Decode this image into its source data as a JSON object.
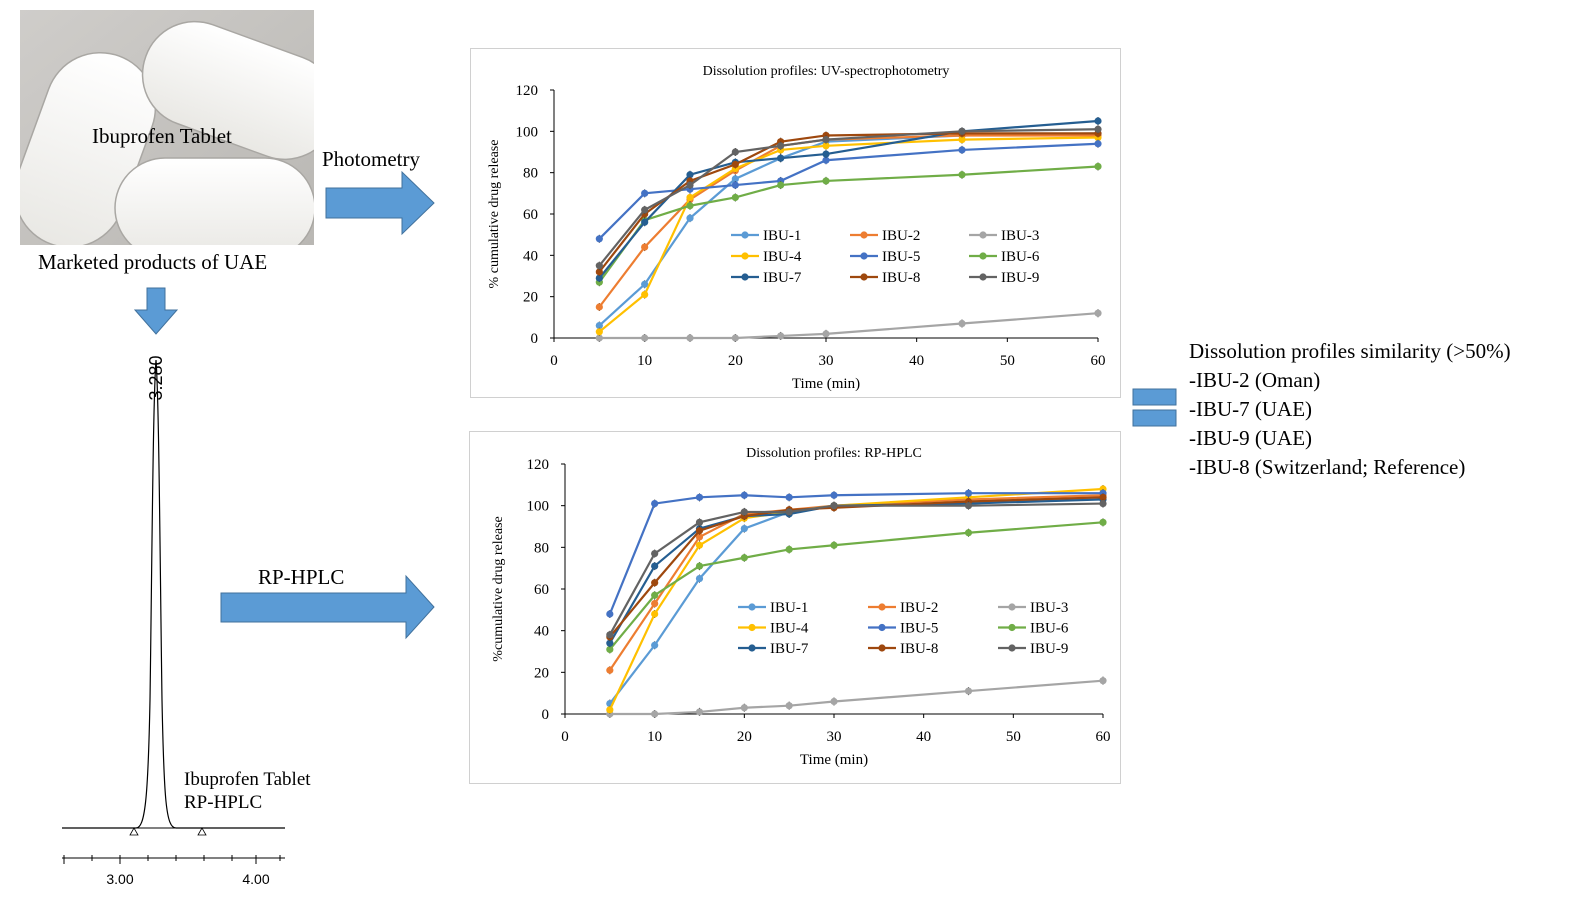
{
  "photo": {
    "label": "Ibuprofen Tablet",
    "caption": "Marketed products of UAE"
  },
  "arrows": {
    "photometry_label": "Photometry",
    "rphplc_label": "RP-HPLC"
  },
  "chromatogram": {
    "peak_label": "3.280",
    "axis_ticks": [
      "3.00",
      "4.00"
    ],
    "annotation": [
      "Ibuprofen Tablet",
      "RP-HPLC"
    ]
  },
  "similarity": {
    "title": "Dissolution profiles similarity (>50%)",
    "items": [
      "-IBU-2 (Oman)",
      "-IBU-7 (UAE)",
      "-IBU-9 (UAE)",
      "-IBU-8 (Switzerland; Reference)"
    ],
    "color": "#5b9bd5"
  },
  "chart_data": [
    {
      "type": "line",
      "title": "Dissolution profiles: UV-spectrophotometry",
      "xlabel": "Time (min)",
      "ylabel": "% cumulative drug release",
      "xlim": [
        0,
        60
      ],
      "ylim": [
        0,
        120
      ],
      "xticks": [
        0,
        10,
        20,
        30,
        40,
        50,
        60
      ],
      "yticks": [
        0,
        20,
        40,
        60,
        80,
        100,
        120
      ],
      "x": [
        5,
        10,
        15,
        20,
        25,
        30,
        45,
        60
      ],
      "series": [
        {
          "name": "IBU-1",
          "color": "#5b9bd5",
          "values": [
            6,
            26,
            58,
            77,
            87,
            95,
            98,
            99
          ]
        },
        {
          "name": "IBU-2",
          "color": "#ed7d31",
          "values": [
            15,
            44,
            67,
            81,
            93,
            96,
            98,
            98
          ]
        },
        {
          "name": "IBU-3",
          "color": "#a5a5a5",
          "values": [
            0,
            0,
            0,
            0,
            1,
            2,
            7,
            12
          ]
        },
        {
          "name": "IBU-4",
          "color": "#ffc000",
          "values": [
            3,
            21,
            68,
            82,
            91,
            93,
            96,
            97
          ]
        },
        {
          "name": "IBU-5",
          "color": "#4472c4",
          "values": [
            48,
            70,
            72,
            74,
            76,
            86,
            91,
            94
          ]
        },
        {
          "name": "IBU-6",
          "color": "#70ad47",
          "values": [
            27,
            57,
            64,
            68,
            74,
            76,
            79,
            83
          ]
        },
        {
          "name": "IBU-7",
          "color": "#255e91",
          "values": [
            29,
            56,
            79,
            85,
            87,
            89,
            100,
            105
          ]
        },
        {
          "name": "IBU-8",
          "color": "#9e480e",
          "values": [
            32,
            60,
            76,
            84,
            95,
            98,
            99,
            99
          ]
        },
        {
          "name": "IBU-9",
          "color": "#636363",
          "values": [
            35,
            62,
            74,
            90,
            93,
            96,
            100,
            101
          ]
        }
      ]
    },
    {
      "type": "line",
      "title": "Dissolution profiles: RP-HPLC",
      "xlabel": "Time (min)",
      "ylabel": "%cumulative drug release",
      "xlim": [
        0,
        60
      ],
      "ylim": [
        0,
        120
      ],
      "xticks": [
        0,
        10,
        20,
        30,
        40,
        50,
        60
      ],
      "yticks": [
        0,
        20,
        40,
        60,
        80,
        100,
        120
      ],
      "x": [
        5,
        10,
        15,
        20,
        25,
        30,
        45,
        60
      ],
      "series": [
        {
          "name": "IBU-1",
          "color": "#5b9bd5",
          "values": [
            5,
            33,
            65,
            89,
            97,
            100,
            101,
            104
          ]
        },
        {
          "name": "IBU-2",
          "color": "#ed7d31",
          "values": [
            21,
            53,
            85,
            96,
            98,
            100,
            103,
            105
          ]
        },
        {
          "name": "IBU-3",
          "color": "#a5a5a5",
          "values": [
            0,
            0,
            1,
            3,
            4,
            6,
            11,
            16
          ]
        },
        {
          "name": "IBU-4",
          "color": "#ffc000",
          "values": [
            2,
            48,
            81,
            94,
            97,
            100,
            104,
            108
          ]
        },
        {
          "name": "IBU-5",
          "color": "#4472c4",
          "values": [
            48,
            101,
            104,
            105,
            104,
            105,
            106,
            106
          ]
        },
        {
          "name": "IBU-6",
          "color": "#70ad47",
          "values": [
            31,
            57,
            71,
            75,
            79,
            81,
            87,
            92
          ]
        },
        {
          "name": "IBU-7",
          "color": "#255e91",
          "values": [
            34,
            71,
            89,
            95,
            96,
            100,
            101,
            103
          ]
        },
        {
          "name": "IBU-8",
          "color": "#9e480e",
          "values": [
            37,
            63,
            88,
            95,
            98,
            99,
            102,
            104
          ]
        },
        {
          "name": "IBU-9",
          "color": "#636363",
          "values": [
            38,
            77,
            92,
            97,
            97,
            100,
            100,
            101
          ]
        }
      ]
    }
  ]
}
